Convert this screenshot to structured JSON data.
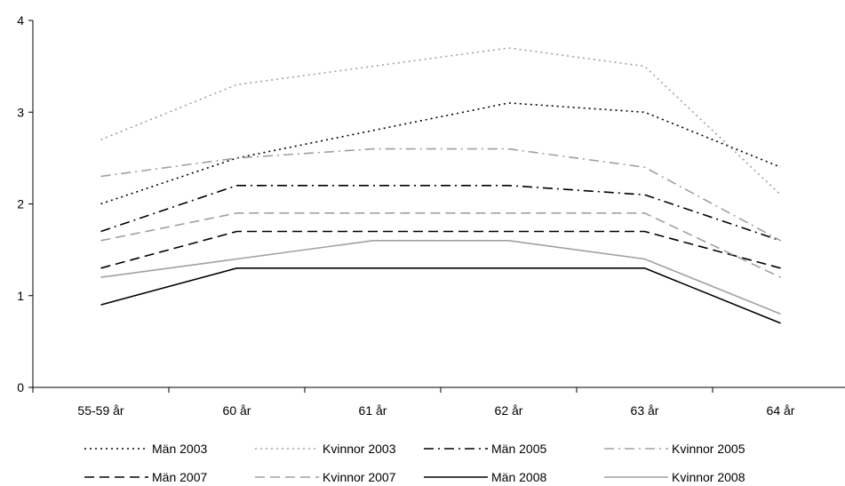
{
  "chart_data": {
    "type": "line",
    "categories": [
      "55-59 år",
      "60 år",
      "61 år",
      "62 år",
      "63 år",
      "64 år"
    ],
    "ylim": [
      0,
      4
    ],
    "yticks": [
      0,
      1,
      2,
      3,
      4
    ],
    "grid": false,
    "legend_position": "bottom",
    "series": [
      {
        "name": "Män 2003",
        "values": [
          2.0,
          2.5,
          2.8,
          3.1,
          3.0,
          2.4
        ],
        "color": "#000000",
        "dash": "dot"
      },
      {
        "name": "Kvinnor 2003",
        "values": [
          2.7,
          3.3,
          3.5,
          3.7,
          3.5,
          2.1
        ],
        "color": "#a0a0a0",
        "dash": "dot"
      },
      {
        "name": "Män 2005",
        "values": [
          1.7,
          2.2,
          2.2,
          2.2,
          2.1,
          1.6
        ],
        "color": "#000000",
        "dash": "dashdot"
      },
      {
        "name": "Kvinnor 2005",
        "values": [
          2.3,
          2.5,
          2.6,
          2.6,
          2.4,
          1.6
        ],
        "color": "#a0a0a0",
        "dash": "dashdot"
      },
      {
        "name": "Män 2007",
        "values": [
          1.3,
          1.7,
          1.7,
          1.7,
          1.7,
          1.3
        ],
        "color": "#000000",
        "dash": "dash"
      },
      {
        "name": "Kvinnor 2007",
        "values": [
          1.6,
          1.9,
          1.9,
          1.9,
          1.9,
          1.2
        ],
        "color": "#a0a0a0",
        "dash": "dash"
      },
      {
        "name": "Män 2008",
        "values": [
          0.9,
          1.3,
          1.3,
          1.3,
          1.3,
          0.7
        ],
        "color": "#000000",
        "dash": "solid"
      },
      {
        "name": "Kvinnor 2008",
        "values": [
          1.2,
          1.4,
          1.6,
          1.6,
          1.4,
          0.8
        ],
        "color": "#a0a0a0",
        "dash": "solid"
      }
    ]
  }
}
